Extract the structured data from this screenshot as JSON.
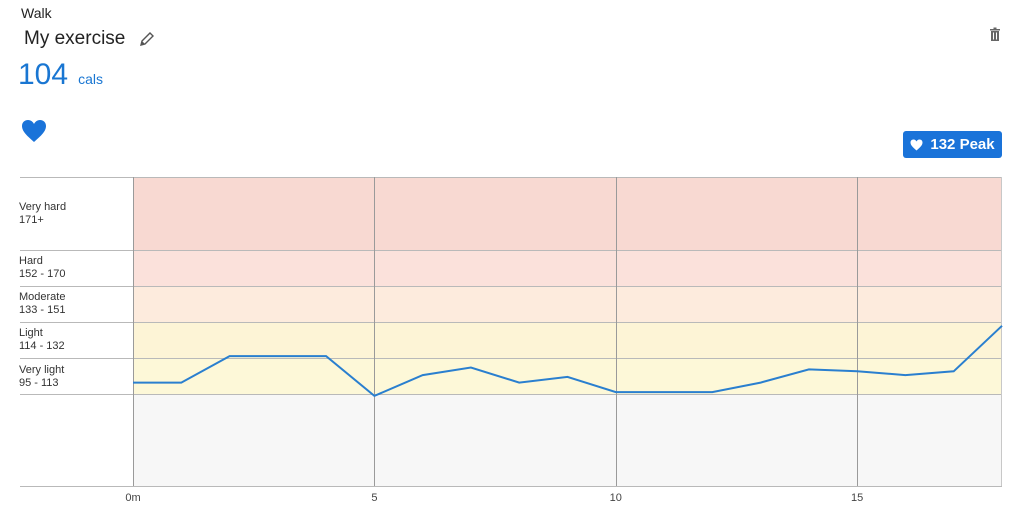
{
  "header": {
    "activity_type": "Walk",
    "title": "My exercise",
    "calories_value": "104",
    "calories_unit": "cals"
  },
  "icons": {
    "edit": "pencil-icon",
    "delete": "trash-icon",
    "heart": "heart-icon"
  },
  "peak_badge": {
    "text": "132 Peak",
    "value": 132
  },
  "colors": {
    "accent": "#1976d2",
    "line": "#2a7fcf",
    "badge": "#1a73d9",
    "zone_very_hard": "#f8d9d2",
    "zone_hard": "#fbe1db",
    "zone_moderate": "#fdebdd",
    "zone_light": "#fdf4d6",
    "zone_very_light": "#fdf8d8",
    "zone_rest": "#f7f7f7"
  },
  "chart_data": {
    "type": "line",
    "title": "",
    "xlabel": "",
    "ylabel": "",
    "xlim": [
      0,
      18
    ],
    "ylim": [
      76,
      171
    ],
    "zones": [
      {
        "name": "Very hard",
        "range": "171+",
        "min": 171,
        "max": null
      },
      {
        "name": "Hard",
        "range": "152 - 170",
        "min": 152,
        "max": 170
      },
      {
        "name": "Moderate",
        "range": "133 - 151",
        "min": 133,
        "max": 151
      },
      {
        "name": "Light",
        "range": "114 - 132",
        "min": 114,
        "max": 132
      },
      {
        "name": "Very light",
        "range": "95 - 113",
        "min": 95,
        "max": 113
      }
    ],
    "x_ticks": [
      {
        "label": "0m",
        "value": 0
      },
      {
        "label": "5",
        "value": 5
      },
      {
        "label": "10",
        "value": 10
      },
      {
        "label": "15",
        "value": 15
      }
    ],
    "series": [
      {
        "x": [
          0,
          1,
          2,
          3,
          4,
          5,
          6,
          7,
          8,
          9,
          10,
          11,
          12,
          13,
          14,
          15,
          16,
          17,
          18
        ],
        "y": [
          101,
          101,
          115,
          115,
          115,
          94,
          105,
          109,
          101,
          104,
          96,
          96,
          96,
          101,
          108,
          107,
          105,
          107,
          131
        ]
      }
    ],
    "grid": true
  }
}
